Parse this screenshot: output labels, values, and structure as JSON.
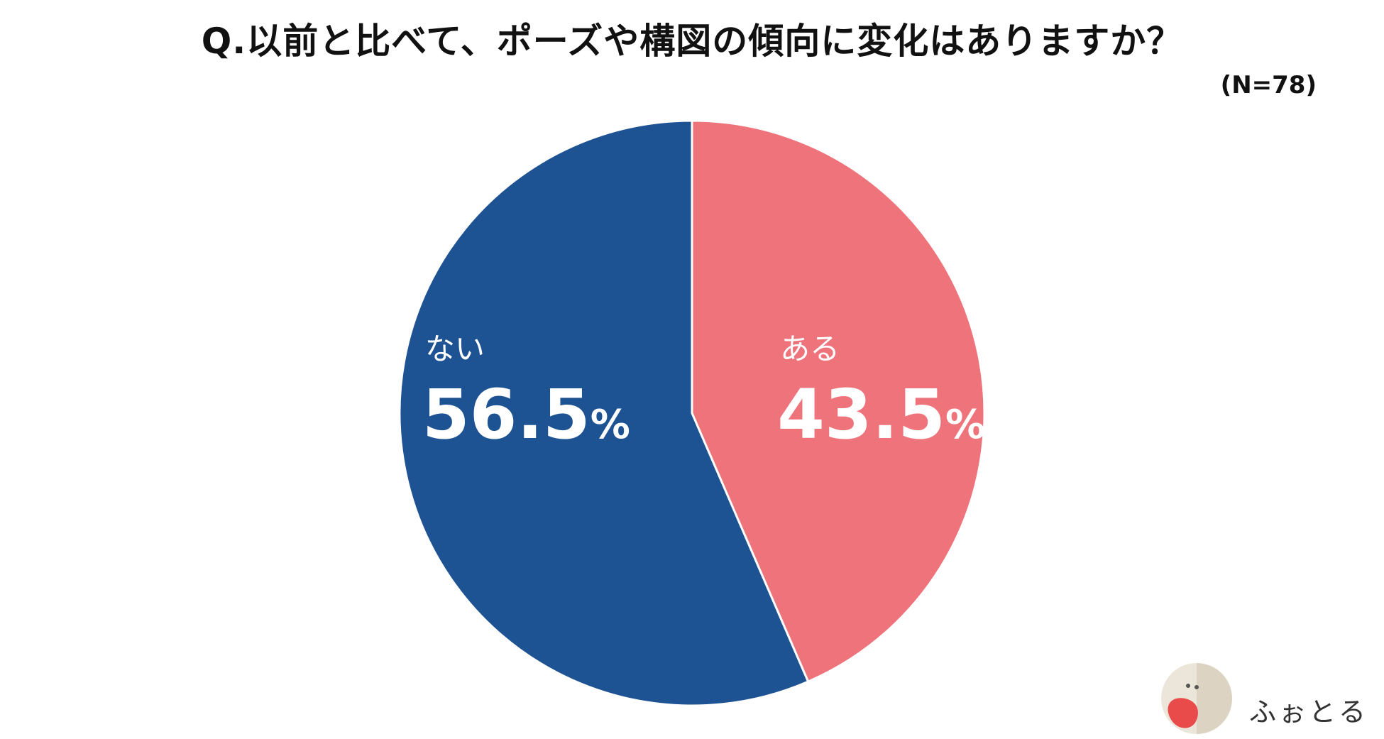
{
  "chart_data": {
    "type": "pie",
    "title": "Q.以前と比べて、ポーズや構図の傾向に変化はありますか？",
    "note": "(N=78)",
    "unit": "%",
    "slices": [
      {
        "label": "ある",
        "value": 43.5,
        "display": "43.5",
        "color": "#ee737b"
      },
      {
        "label": "ない",
        "value": 56.5,
        "display": "56.5",
        "color": "#1d5293"
      }
    ],
    "start_angle_deg": 0,
    "direction": "clockwise",
    "separator_color": "#ffffff",
    "legend": "none"
  },
  "logo": {
    "text": "ふぉとる",
    "colors": {
      "circle": "#e9e2d4",
      "mascot": "#e94b4b"
    }
  }
}
